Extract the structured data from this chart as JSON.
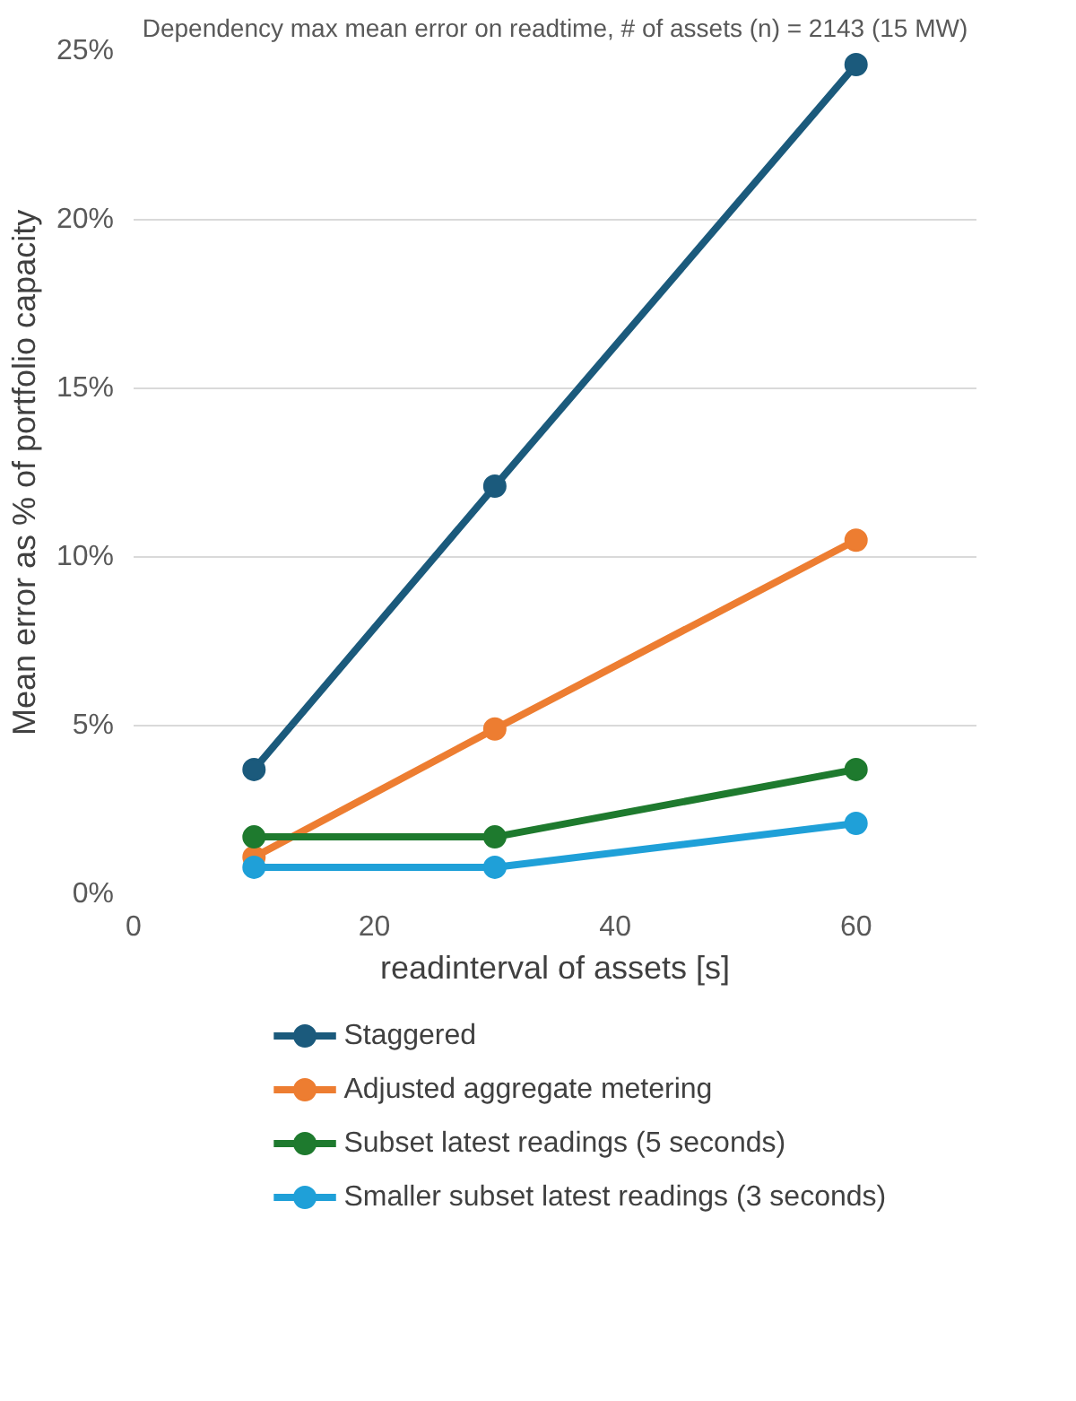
{
  "chart_data": {
    "type": "line",
    "title": "Dependency max mean error on readtime, # of assets (n) = 2143 (15 MW)",
    "xlabel": "readinterval of assets [s]",
    "ylabel": "Mean error as % of portfolio capacity",
    "x": [
      10,
      30,
      60
    ],
    "series": [
      {
        "name": "Staggered",
        "color": "#1b5a7c",
        "values": [
          3.7,
          12.1,
          24.6
        ]
      },
      {
        "name": "Adjusted aggregate metering",
        "color": "#ed7d31",
        "values": [
          1.1,
          4.9,
          10.5
        ]
      },
      {
        "name": "Subset latest readings (5 seconds)",
        "color": "#1e7a2e",
        "values": [
          1.7,
          1.7,
          3.7
        ]
      },
      {
        "name": "Smaller subset latest readings (3 seconds)",
        "color": "#1fa0d8",
        "values": [
          0.8,
          0.8,
          2.1
        ]
      }
    ],
    "xlim": [
      0,
      70
    ],
    "xticks": [
      0,
      20,
      40,
      60
    ],
    "ylim": [
      0,
      25
    ],
    "yticks": [
      {
        "value": 0,
        "label": "0%"
      },
      {
        "value": 5,
        "label": "5%"
      },
      {
        "value": 10,
        "label": "10%"
      },
      {
        "value": 15,
        "label": "15%"
      },
      {
        "value": 20,
        "label": "20%"
      },
      {
        "value": 25,
        "label": "25%"
      }
    ],
    "grid": "y",
    "legend": "bottom",
    "marker": "circle",
    "line_style": "solid"
  }
}
